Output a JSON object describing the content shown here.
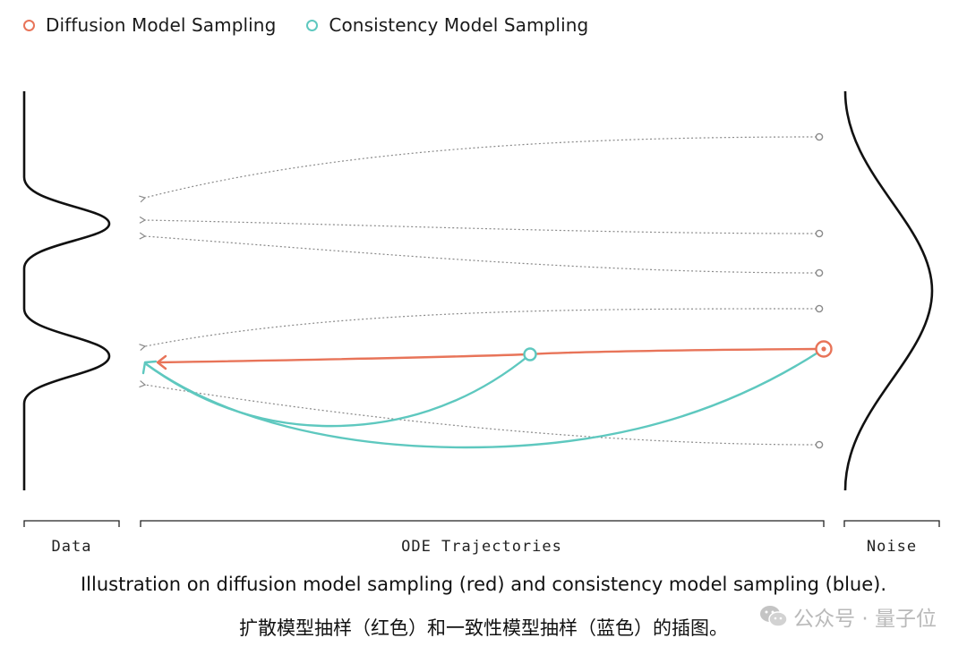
{
  "legend": {
    "items": [
      {
        "label": "Diffusion Model Sampling",
        "color": "#e87459"
      },
      {
        "label": "Consistency Model Sampling",
        "color": "#5ec8bf"
      }
    ]
  },
  "axis_labels": {
    "data": "Data",
    "ode": "ODE Trajectories",
    "noise": "Noise"
  },
  "caption": {
    "english": "Illustration on diffusion model sampling (red) and consistency model sampling (blue).",
    "chinese": "扩散模型抽样（红色）和一致性模型抽样（蓝色）的插图。"
  },
  "watermark": {
    "text": "公众号 · 量子位"
  },
  "colors": {
    "diffusion": "#e87459",
    "consistency": "#5ec8bf",
    "trajectory": "#8a8a8a",
    "ink": "#111111"
  },
  "icons": {
    "wechat_logo": "wechat-logo-icon"
  }
}
